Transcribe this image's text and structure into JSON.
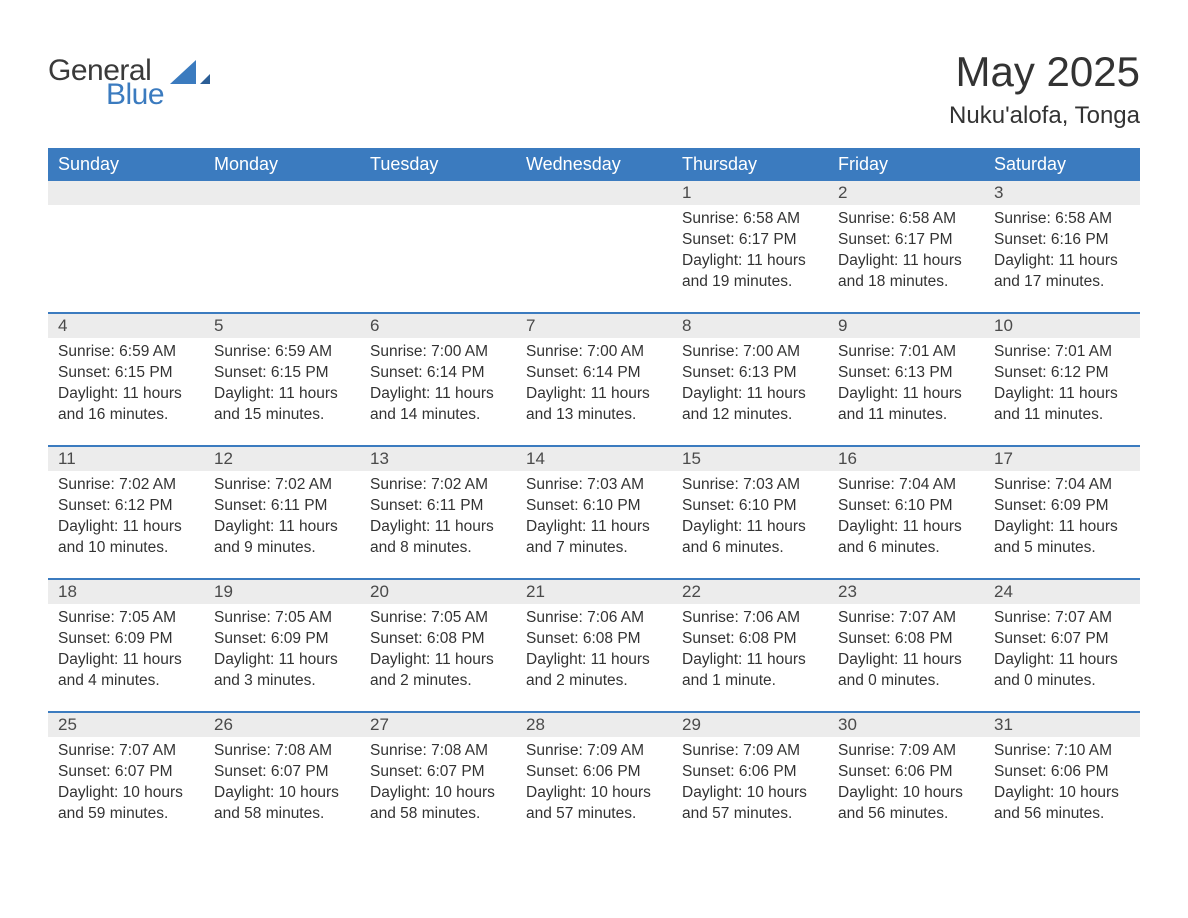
{
  "logo": {
    "word1": "General",
    "word2": "Blue",
    "sail_color": "#3b7bbf"
  },
  "title": "May 2025",
  "location": "Nuku'alofa, Tonga",
  "colors": {
    "header_bg": "#3b7bbf",
    "header_text": "#ffffff",
    "daynum_bg": "#ececec",
    "row_divider": "#3b7bbf",
    "text": "#333333"
  },
  "weekdays": [
    "Sunday",
    "Monday",
    "Tuesday",
    "Wednesday",
    "Thursday",
    "Friday",
    "Saturday"
  ],
  "weeks": [
    [
      null,
      null,
      null,
      null,
      {
        "n": "1",
        "sunrise": "6:58 AM",
        "sunset": "6:17 PM",
        "daylight": "11 hours and 19 minutes."
      },
      {
        "n": "2",
        "sunrise": "6:58 AM",
        "sunset": "6:17 PM",
        "daylight": "11 hours and 18 minutes."
      },
      {
        "n": "3",
        "sunrise": "6:58 AM",
        "sunset": "6:16 PM",
        "daylight": "11 hours and 17 minutes."
      }
    ],
    [
      {
        "n": "4",
        "sunrise": "6:59 AM",
        "sunset": "6:15 PM",
        "daylight": "11 hours and 16 minutes."
      },
      {
        "n": "5",
        "sunrise": "6:59 AM",
        "sunset": "6:15 PM",
        "daylight": "11 hours and 15 minutes."
      },
      {
        "n": "6",
        "sunrise": "7:00 AM",
        "sunset": "6:14 PM",
        "daylight": "11 hours and 14 minutes."
      },
      {
        "n": "7",
        "sunrise": "7:00 AM",
        "sunset": "6:14 PM",
        "daylight": "11 hours and 13 minutes."
      },
      {
        "n": "8",
        "sunrise": "7:00 AM",
        "sunset": "6:13 PM",
        "daylight": "11 hours and 12 minutes."
      },
      {
        "n": "9",
        "sunrise": "7:01 AM",
        "sunset": "6:13 PM",
        "daylight": "11 hours and 11 minutes."
      },
      {
        "n": "10",
        "sunrise": "7:01 AM",
        "sunset": "6:12 PM",
        "daylight": "11 hours and 11 minutes."
      }
    ],
    [
      {
        "n": "11",
        "sunrise": "7:02 AM",
        "sunset": "6:12 PM",
        "daylight": "11 hours and 10 minutes."
      },
      {
        "n": "12",
        "sunrise": "7:02 AM",
        "sunset": "6:11 PM",
        "daylight": "11 hours and 9 minutes."
      },
      {
        "n": "13",
        "sunrise": "7:02 AM",
        "sunset": "6:11 PM",
        "daylight": "11 hours and 8 minutes."
      },
      {
        "n": "14",
        "sunrise": "7:03 AM",
        "sunset": "6:10 PM",
        "daylight": "11 hours and 7 minutes."
      },
      {
        "n": "15",
        "sunrise": "7:03 AM",
        "sunset": "6:10 PM",
        "daylight": "11 hours and 6 minutes."
      },
      {
        "n": "16",
        "sunrise": "7:04 AM",
        "sunset": "6:10 PM",
        "daylight": "11 hours and 6 minutes."
      },
      {
        "n": "17",
        "sunrise": "7:04 AM",
        "sunset": "6:09 PM",
        "daylight": "11 hours and 5 minutes."
      }
    ],
    [
      {
        "n": "18",
        "sunrise": "7:05 AM",
        "sunset": "6:09 PM",
        "daylight": "11 hours and 4 minutes."
      },
      {
        "n": "19",
        "sunrise": "7:05 AM",
        "sunset": "6:09 PM",
        "daylight": "11 hours and 3 minutes."
      },
      {
        "n": "20",
        "sunrise": "7:05 AM",
        "sunset": "6:08 PM",
        "daylight": "11 hours and 2 minutes."
      },
      {
        "n": "21",
        "sunrise": "7:06 AM",
        "sunset": "6:08 PM",
        "daylight": "11 hours and 2 minutes."
      },
      {
        "n": "22",
        "sunrise": "7:06 AM",
        "sunset": "6:08 PM",
        "daylight": "11 hours and 1 minute."
      },
      {
        "n": "23",
        "sunrise": "7:07 AM",
        "sunset": "6:08 PM",
        "daylight": "11 hours and 0 minutes."
      },
      {
        "n": "24",
        "sunrise": "7:07 AM",
        "sunset": "6:07 PM",
        "daylight": "11 hours and 0 minutes."
      }
    ],
    [
      {
        "n": "25",
        "sunrise": "7:07 AM",
        "sunset": "6:07 PM",
        "daylight": "10 hours and 59 minutes."
      },
      {
        "n": "26",
        "sunrise": "7:08 AM",
        "sunset": "6:07 PM",
        "daylight": "10 hours and 58 minutes."
      },
      {
        "n": "27",
        "sunrise": "7:08 AM",
        "sunset": "6:07 PM",
        "daylight": "10 hours and 58 minutes."
      },
      {
        "n": "28",
        "sunrise": "7:09 AM",
        "sunset": "6:06 PM",
        "daylight": "10 hours and 57 minutes."
      },
      {
        "n": "29",
        "sunrise": "7:09 AM",
        "sunset": "6:06 PM",
        "daylight": "10 hours and 57 minutes."
      },
      {
        "n": "30",
        "sunrise": "7:09 AM",
        "sunset": "6:06 PM",
        "daylight": "10 hours and 56 minutes."
      },
      {
        "n": "31",
        "sunrise": "7:10 AM",
        "sunset": "6:06 PM",
        "daylight": "10 hours and 56 minutes."
      }
    ]
  ]
}
